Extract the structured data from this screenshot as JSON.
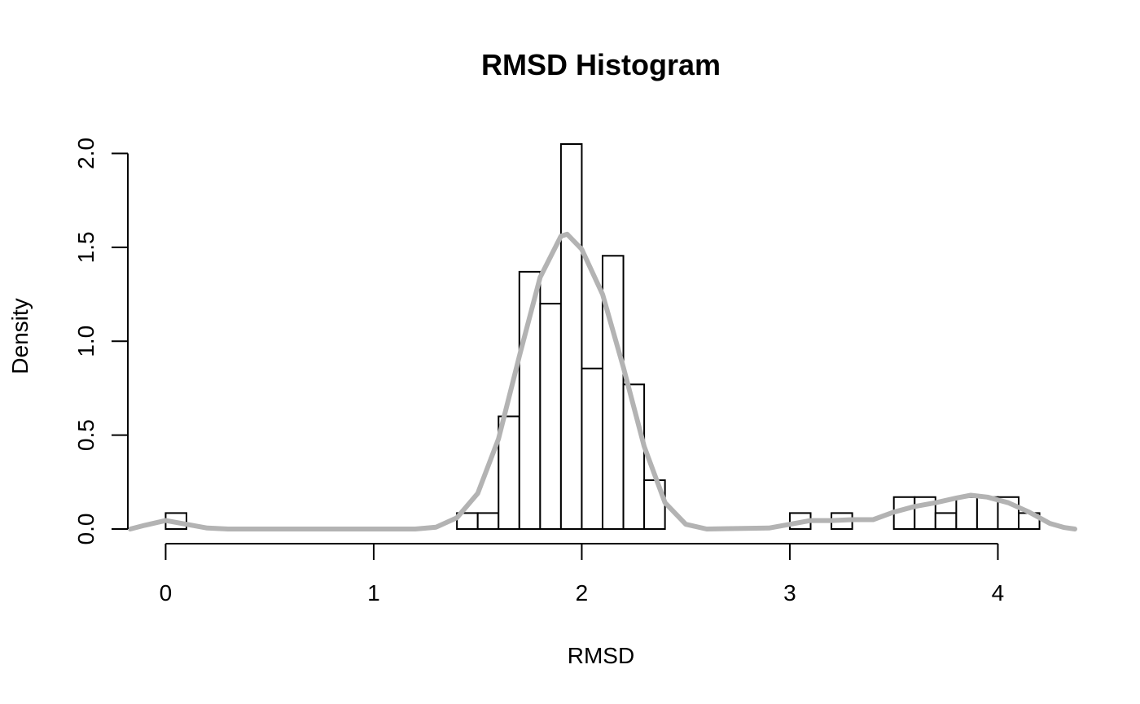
{
  "chart_data": {
    "type": "histogram",
    "title": "RMSD Histogram",
    "xlabel": "RMSD",
    "ylabel": "Density",
    "xlim": [
      -0.17,
      4.37
    ],
    "ylim": [
      0,
      2.05
    ],
    "x_ticks": [
      0,
      1,
      2,
      3,
      4
    ],
    "y_ticks": [
      0.0,
      0.5,
      1.0,
      1.5,
      2.0
    ],
    "x_tick_labels": [
      "0",
      "1",
      "2",
      "3",
      "4"
    ],
    "y_tick_labels": [
      "0.0",
      "0.5",
      "1.0",
      "1.5",
      "2.0"
    ],
    "bin_width": 0.1,
    "bins": [
      {
        "x0": 0.0,
        "x1": 0.1,
        "density": 0.085
      },
      {
        "x0": 1.4,
        "x1": 1.5,
        "density": 0.085
      },
      {
        "x0": 1.5,
        "x1": 1.6,
        "density": 0.085
      },
      {
        "x0": 1.6,
        "x1": 1.7,
        "density": 0.6
      },
      {
        "x0": 1.7,
        "x1": 1.8,
        "density": 1.37
      },
      {
        "x0": 1.8,
        "x1": 1.9,
        "density": 1.2
      },
      {
        "x0": 1.9,
        "x1": 2.0,
        "density": 2.05
      },
      {
        "x0": 2.0,
        "x1": 2.1,
        "density": 0.855
      },
      {
        "x0": 2.1,
        "x1": 2.2,
        "density": 1.455
      },
      {
        "x0": 2.2,
        "x1": 2.3,
        "density": 0.77
      },
      {
        "x0": 2.3,
        "x1": 2.4,
        "density": 0.26
      },
      {
        "x0": 3.0,
        "x1": 3.1,
        "density": 0.085
      },
      {
        "x0": 3.2,
        "x1": 3.3,
        "density": 0.085
      },
      {
        "x0": 3.5,
        "x1": 3.6,
        "density": 0.17
      },
      {
        "x0": 3.6,
        "x1": 3.7,
        "density": 0.17
      },
      {
        "x0": 3.7,
        "x1": 3.8,
        "density": 0.085
      },
      {
        "x0": 3.8,
        "x1": 3.9,
        "density": 0.17
      },
      {
        "x0": 3.9,
        "x1": 4.0,
        "density": 0.17
      },
      {
        "x0": 4.0,
        "x1": 4.1,
        "density": 0.17
      },
      {
        "x0": 4.1,
        "x1": 4.2,
        "density": 0.085
      }
    ],
    "density_curve": {
      "color": "#b3b3b3",
      "points": [
        [
          -0.17,
          0.0
        ],
        [
          -0.1,
          0.02
        ],
        [
          0.0,
          0.045
        ],
        [
          0.1,
          0.025
        ],
        [
          0.2,
          0.005
        ],
        [
          0.3,
          0.0
        ],
        [
          1.2,
          0.0
        ],
        [
          1.3,
          0.01
        ],
        [
          1.4,
          0.06
        ],
        [
          1.5,
          0.19
        ],
        [
          1.6,
          0.48
        ],
        [
          1.7,
          0.92
        ],
        [
          1.8,
          1.34
        ],
        [
          1.9,
          1.56
        ],
        [
          1.93,
          1.57
        ],
        [
          2.0,
          1.49
        ],
        [
          2.1,
          1.25
        ],
        [
          2.2,
          0.86
        ],
        [
          2.3,
          0.44
        ],
        [
          2.4,
          0.14
        ],
        [
          2.5,
          0.025
        ],
        [
          2.6,
          0.0
        ],
        [
          2.9,
          0.005
        ],
        [
          3.0,
          0.025
        ],
        [
          3.1,
          0.045
        ],
        [
          3.2,
          0.045
        ],
        [
          3.3,
          0.05
        ],
        [
          3.4,
          0.05
        ],
        [
          3.5,
          0.09
        ],
        [
          3.6,
          0.12
        ],
        [
          3.7,
          0.14
        ],
        [
          3.8,
          0.165
        ],
        [
          3.87,
          0.18
        ],
        [
          3.95,
          0.17
        ],
        [
          4.05,
          0.14
        ],
        [
          4.15,
          0.09
        ],
        [
          4.25,
          0.03
        ],
        [
          4.32,
          0.008
        ],
        [
          4.37,
          0.0
        ]
      ]
    }
  }
}
